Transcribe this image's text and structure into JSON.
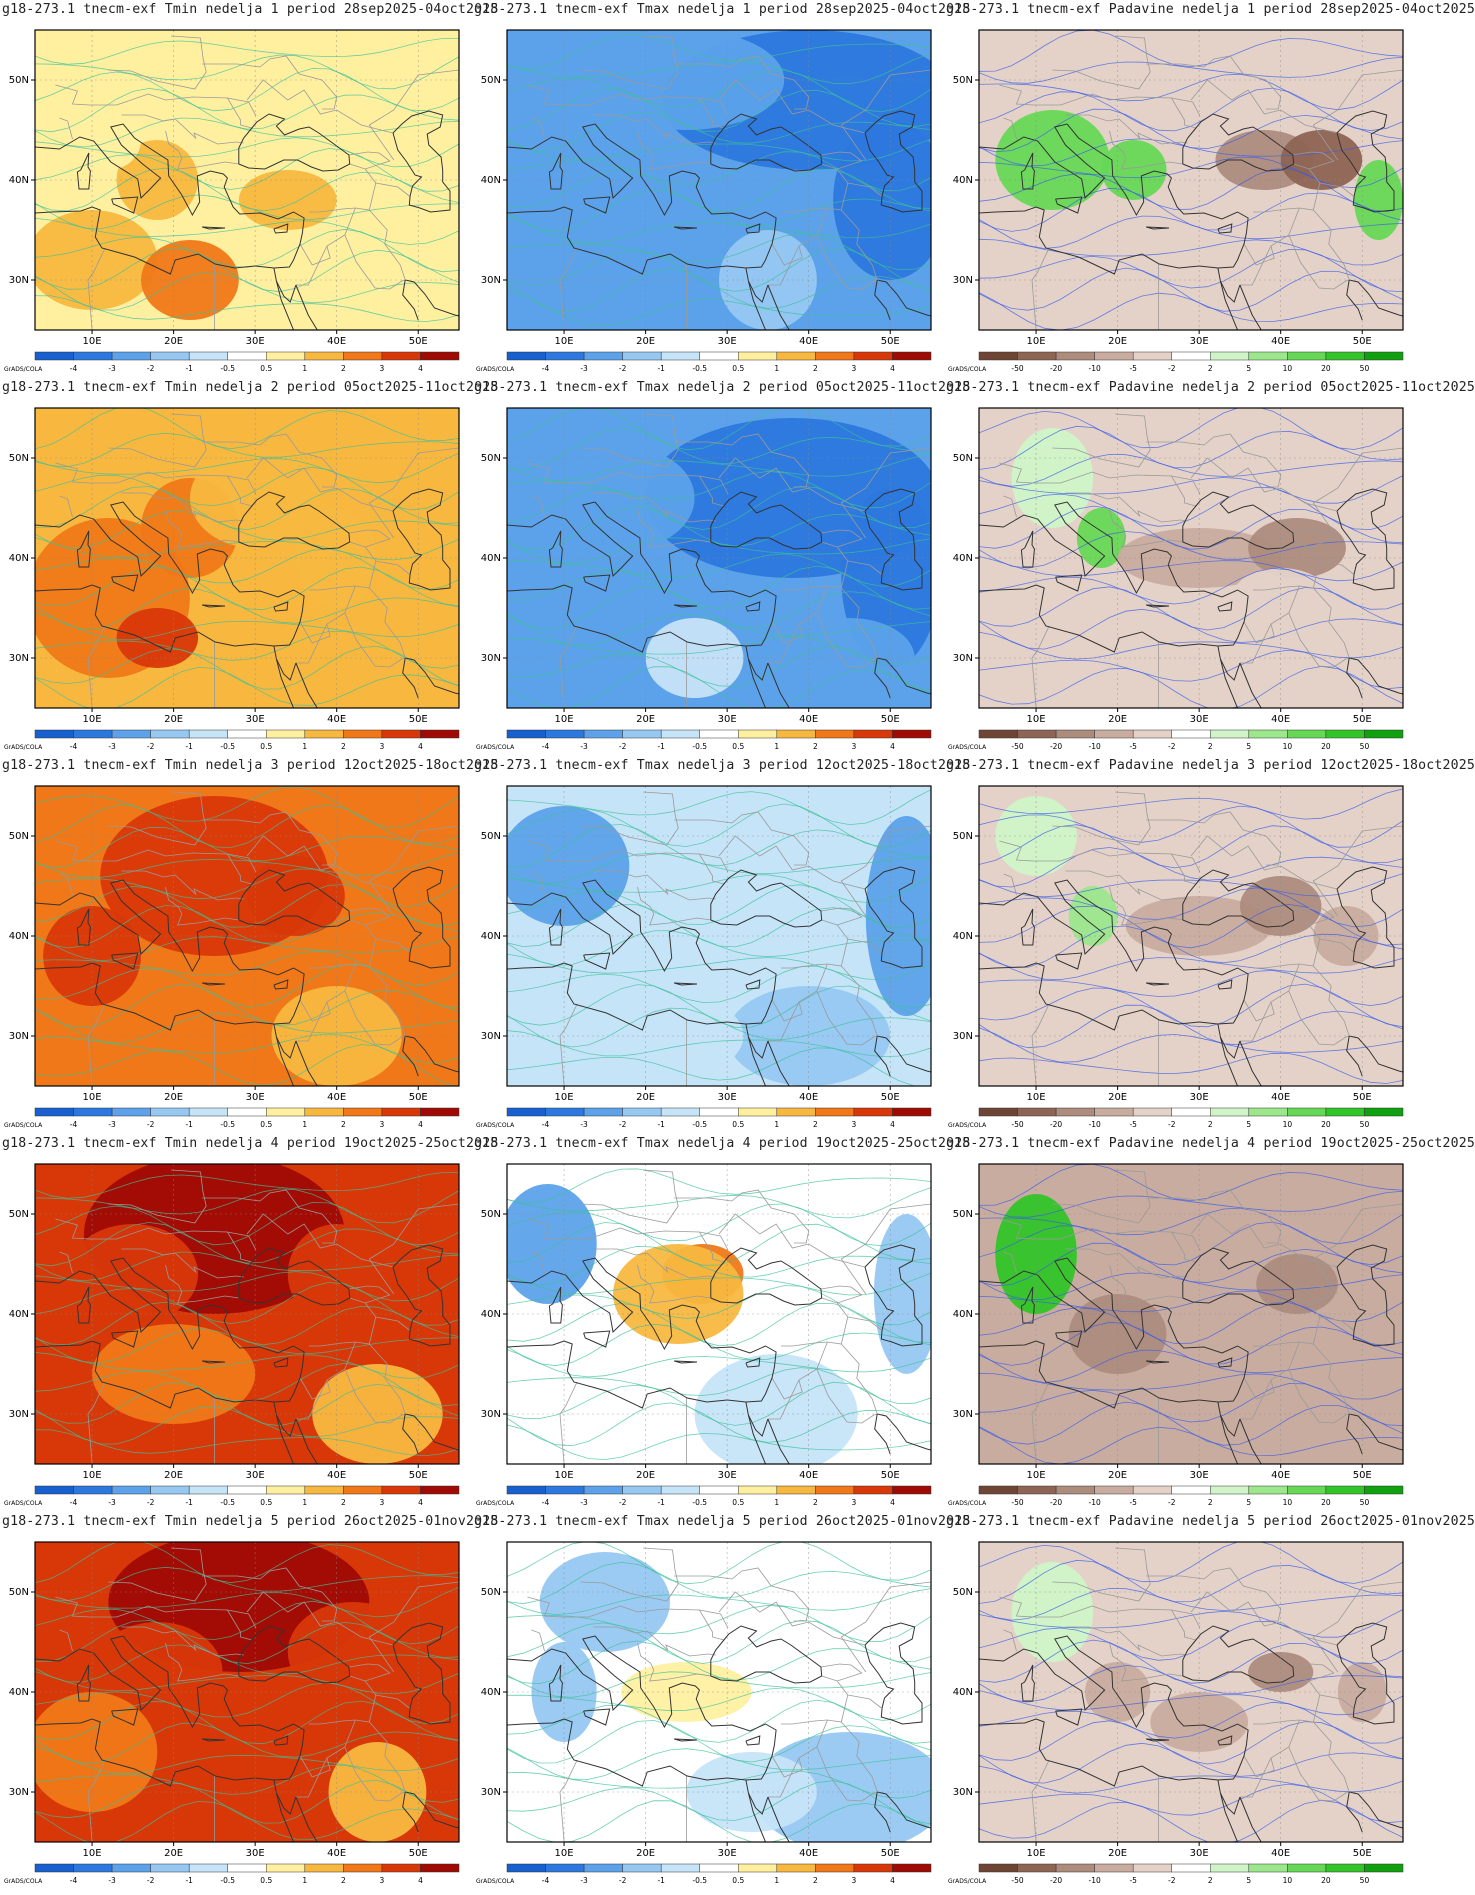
{
  "axes": {
    "lon_labels": [
      "10E",
      "20E",
      "30E",
      "40E",
      "50E"
    ],
    "lat_labels": [
      "50N",
      "40N",
      "30N"
    ],
    "credit": "GrADS/COLA"
  },
  "scales": {
    "temp": {
      "labels": [
        "-4",
        "-3",
        "-2",
        "-1",
        "-0.5",
        "0.5",
        "1",
        "2",
        "3",
        "4"
      ],
      "colors": [
        "#1860d0",
        "#2c78de",
        "#5ca2ea",
        "#96c8f2",
        "#c6e4f8",
        "#ffffff",
        "#fff0a0",
        "#f8b840",
        "#f07818",
        "#d83808",
        "#a00a04"
      ]
    },
    "precip": {
      "labels": [
        "-50",
        "-20",
        "-10",
        "-5",
        "-2",
        "2",
        "5",
        "10",
        "20",
        "50"
      ],
      "colors": [
        "#6e4434",
        "#8e6454",
        "#ad8c7e",
        "#c9aca0",
        "#e4d2c8",
        "#ffffff",
        "#d0f4c8",
        "#9ce68c",
        "#66d856",
        "#32c428",
        "#10a010"
      ]
    }
  },
  "panels": [
    {
      "title": "g18-273.1 tnecm-exf Tmin nedelja 1 period 28sep2025-04oct2025",
      "variable": "Tmin",
      "week": 1,
      "anomaly_level": 0.7
    },
    {
      "title": "g18-273.1 tnecm-exf Tmax nedelja 1 period 28sep2025-04oct2025",
      "variable": "Tmax",
      "week": 1,
      "anomaly_level": -2.2
    },
    {
      "title": "g18-273.1 tnecm-exf Padavine nedelja 1 period 28sep2025-04oct2025",
      "variable": "Padavine",
      "week": 1,
      "anomaly_level": -3
    },
    {
      "title": "g18-273.1 tnecm-exf Tmin nedelja 2 period 05oct2025-11oct2025",
      "variable": "Tmin",
      "week": 2,
      "anomaly_level": 1.8
    },
    {
      "title": "g18-273.1 tnecm-exf Tmax nedelja 2 period 05oct2025-11oct2025",
      "variable": "Tmax",
      "week": 2,
      "anomaly_level": -2.0
    },
    {
      "title": "g18-273.1 tnecm-exf Padavine nedelja 2 period 05oct2025-11oct2025",
      "variable": "Padavine",
      "week": 2,
      "anomaly_level": -2
    },
    {
      "title": "g18-273.1 tnecm-exf Tmin nedelja 3 period 12oct2025-18oct2025",
      "variable": "Tmin",
      "week": 3,
      "anomaly_level": 2.8
    },
    {
      "title": "g18-273.1 tnecm-exf Tmax nedelja 3 period 12oct2025-18oct2025",
      "variable": "Tmax",
      "week": 3,
      "anomaly_level": -0.7
    },
    {
      "title": "g18-273.1 tnecm-exf Padavine nedelja 3 period 12oct2025-18oct2025",
      "variable": "Padavine",
      "week": 3,
      "anomaly_level": -3
    },
    {
      "title": "g18-273.1 tnecm-exf Tmin nedelja 4 period 19oct2025-25oct2025",
      "variable": "Tmin",
      "week": 4,
      "anomaly_level": 3.4
    },
    {
      "title": "g18-273.1 tnecm-exf Tmax nedelja 4 period 19oct2025-25oct2025",
      "variable": "Tmax",
      "week": 4,
      "anomaly_level": 0.2
    },
    {
      "title": "g18-273.1 tnecm-exf Padavine nedelja 4 period 19oct2025-25oct2025",
      "variable": "Padavine",
      "week": 4,
      "anomaly_level": -6
    },
    {
      "title": "g18-273.1 tnecm-exf Tmin nedelja 5 period 26oct2025-01nov2025",
      "variable": "Tmin",
      "week": 5,
      "anomaly_level": 3.3
    },
    {
      "title": "g18-273.1 tnecm-exf Tmax nedelja 5 period 26oct2025-01nov2025",
      "variable": "Tmax",
      "week": 5,
      "anomaly_level": -0.4
    },
    {
      "title": "g18-273.1 tnecm-exf Padavine nedelja 5 period 26oct2025-01nov2025",
      "variable": "Padavine",
      "week": 5,
      "anomaly_level": -3
    }
  ]
}
